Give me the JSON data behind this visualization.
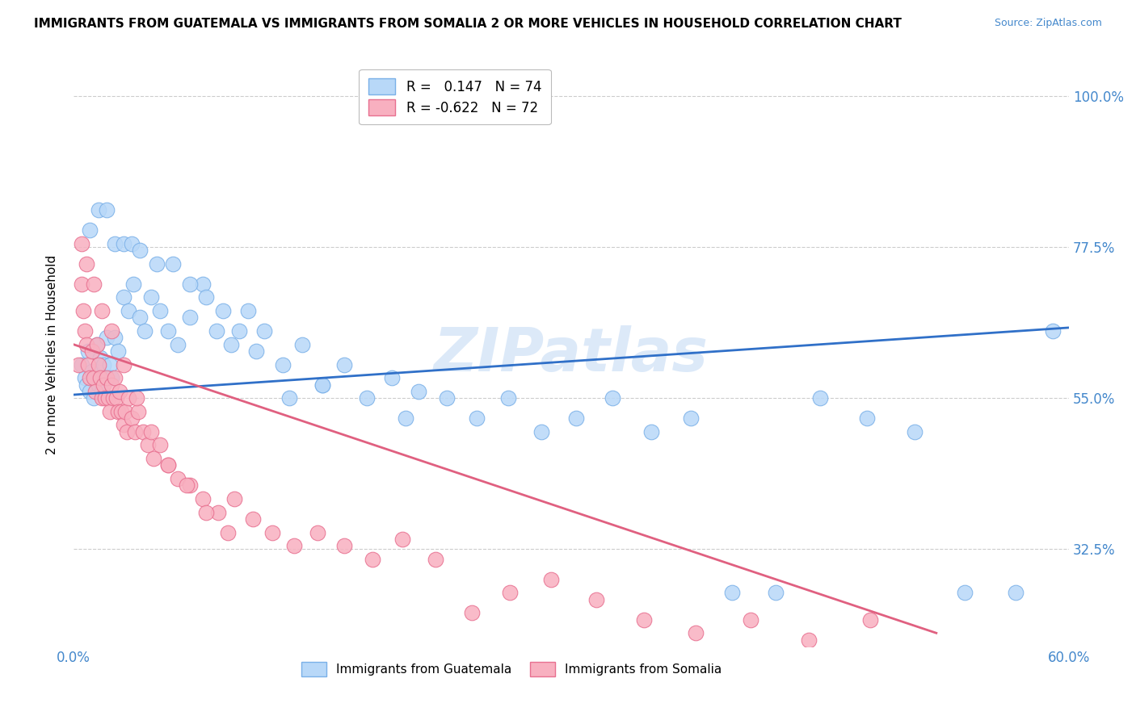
{
  "title": "IMMIGRANTS FROM GUATEMALA VS IMMIGRANTS FROM SOMALIA 2 OR MORE VEHICLES IN HOUSEHOLD CORRELATION CHART",
  "source": "Source: ZipAtlas.com",
  "ylabel": "2 or more Vehicles in Household",
  "ytick_labels": [
    "100.0%",
    "77.5%",
    "55.0%",
    "32.5%"
  ],
  "ytick_values": [
    1.0,
    0.775,
    0.55,
    0.325
  ],
  "xlim": [
    0.0,
    0.6
  ],
  "ylim": [
    0.18,
    1.05
  ],
  "guatemala_color": "#b8d8f8",
  "guatemala_edge": "#7ab0e8",
  "somalia_color": "#f8b0c0",
  "somalia_edge": "#e87090",
  "trendline_guatemala_color": "#3070c8",
  "trendline_somalia_color": "#e06080",
  "watermark": "ZIPatlas",
  "guatemala_x": [
    0.005,
    0.007,
    0.008,
    0.009,
    0.01,
    0.011,
    0.012,
    0.013,
    0.014,
    0.015,
    0.016,
    0.017,
    0.018,
    0.019,
    0.02,
    0.022,
    0.023,
    0.025,
    0.027,
    0.03,
    0.033,
    0.036,
    0.04,
    0.043,
    0.047,
    0.052,
    0.057,
    0.063,
    0.07,
    0.078,
    0.086,
    0.095,
    0.105,
    0.115,
    0.126,
    0.138,
    0.15,
    0.163,
    0.177,
    0.192,
    0.208,
    0.225,
    0.243,
    0.262,
    0.282,
    0.303,
    0.325,
    0.348,
    0.372,
    0.397,
    0.423,
    0.45,
    0.478,
    0.507,
    0.537,
    0.568,
    0.01,
    0.015,
    0.02,
    0.025,
    0.03,
    0.035,
    0.04,
    0.05,
    0.06,
    0.07,
    0.08,
    0.09,
    0.1,
    0.11,
    0.13,
    0.15,
    0.2,
    0.59
  ],
  "guatemala_y": [
    0.6,
    0.58,
    0.57,
    0.62,
    0.56,
    0.59,
    0.55,
    0.58,
    0.63,
    0.57,
    0.61,
    0.56,
    0.6,
    0.58,
    0.64,
    0.6,
    0.58,
    0.64,
    0.62,
    0.7,
    0.68,
    0.72,
    0.67,
    0.65,
    0.7,
    0.68,
    0.65,
    0.63,
    0.67,
    0.72,
    0.65,
    0.63,
    0.68,
    0.65,
    0.6,
    0.63,
    0.57,
    0.6,
    0.55,
    0.58,
    0.56,
    0.55,
    0.52,
    0.55,
    0.5,
    0.52,
    0.55,
    0.5,
    0.52,
    0.26,
    0.26,
    0.55,
    0.52,
    0.5,
    0.26,
    0.26,
    0.8,
    0.83,
    0.83,
    0.78,
    0.78,
    0.78,
    0.77,
    0.75,
    0.75,
    0.72,
    0.7,
    0.68,
    0.65,
    0.62,
    0.55,
    0.57,
    0.52,
    0.65
  ],
  "somalia_x": [
    0.003,
    0.005,
    0.006,
    0.007,
    0.008,
    0.009,
    0.01,
    0.011,
    0.012,
    0.013,
    0.014,
    0.015,
    0.016,
    0.017,
    0.018,
    0.019,
    0.02,
    0.021,
    0.022,
    0.023,
    0.024,
    0.025,
    0.026,
    0.027,
    0.028,
    0.029,
    0.03,
    0.031,
    0.032,
    0.033,
    0.035,
    0.037,
    0.039,
    0.042,
    0.045,
    0.048,
    0.052,
    0.057,
    0.063,
    0.07,
    0.078,
    0.087,
    0.097,
    0.108,
    0.12,
    0.133,
    0.147,
    0.163,
    0.18,
    0.198,
    0.218,
    0.24,
    0.263,
    0.288,
    0.315,
    0.344,
    0.375,
    0.408,
    0.443,
    0.48,
    0.005,
    0.008,
    0.012,
    0.017,
    0.023,
    0.03,
    0.038,
    0.047,
    0.057,
    0.068,
    0.08,
    0.093
  ],
  "somalia_y": [
    0.6,
    0.72,
    0.68,
    0.65,
    0.63,
    0.6,
    0.58,
    0.62,
    0.58,
    0.56,
    0.63,
    0.6,
    0.58,
    0.55,
    0.57,
    0.55,
    0.58,
    0.55,
    0.53,
    0.57,
    0.55,
    0.58,
    0.55,
    0.53,
    0.56,
    0.53,
    0.51,
    0.53,
    0.5,
    0.55,
    0.52,
    0.5,
    0.53,
    0.5,
    0.48,
    0.46,
    0.48,
    0.45,
    0.43,
    0.42,
    0.4,
    0.38,
    0.4,
    0.37,
    0.35,
    0.33,
    0.35,
    0.33,
    0.31,
    0.34,
    0.31,
    0.23,
    0.26,
    0.28,
    0.25,
    0.22,
    0.2,
    0.22,
    0.19,
    0.22,
    0.78,
    0.75,
    0.72,
    0.68,
    0.65,
    0.6,
    0.55,
    0.5,
    0.45,
    0.42,
    0.38,
    0.35
  ],
  "guatemala_trend_x": [
    0.0,
    0.6
  ],
  "guatemala_trend_y": [
    0.555,
    0.655
  ],
  "somalia_trend_x": [
    0.0,
    0.52
  ],
  "somalia_trend_y": [
    0.63,
    0.2
  ]
}
